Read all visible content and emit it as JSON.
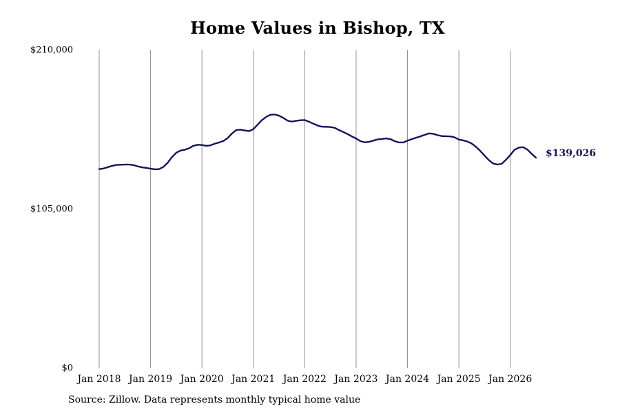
{
  "chart_data": {
    "type": "line",
    "title": "Home Values in Bishop, TX",
    "xlabel": "",
    "ylabel": "",
    "ylim": [
      0,
      210000
    ],
    "xlim": [
      "2018-01",
      "2026-07"
    ],
    "grid": "vertical",
    "y_ticks": [
      {
        "value": 0,
        "label": "$0"
      },
      {
        "value": 105000,
        "label": "$105,000"
      },
      {
        "value": 210000,
        "label": "$210,000"
      }
    ],
    "x_ticks": [
      {
        "value": "2018-01",
        "label": "Jan 2018"
      },
      {
        "value": "2019-01",
        "label": "Jan 2019"
      },
      {
        "value": "2020-01",
        "label": "Jan 2020"
      },
      {
        "value": "2021-01",
        "label": "Jan 2021"
      },
      {
        "value": "2022-01",
        "label": "Jan 2022"
      },
      {
        "value": "2023-01",
        "label": "Jan 2023"
      },
      {
        "value": "2024-01",
        "label": "Jan 2024"
      },
      {
        "value": "2025-01",
        "label": "Jan 2025"
      },
      {
        "value": "2026-01",
        "label": "Jan 2026"
      }
    ],
    "series": [
      {
        "color": "#14145a",
        "end_label": "$139,026",
        "points": [
          [
            "2018-01",
            131500
          ],
          [
            "2018-02",
            131900
          ],
          [
            "2018-03",
            132800
          ],
          [
            "2018-04",
            133600
          ],
          [
            "2018-05",
            134300
          ],
          [
            "2018-06",
            134400
          ],
          [
            "2018-07",
            134500
          ],
          [
            "2018-08",
            134500
          ],
          [
            "2018-09",
            134200
          ],
          [
            "2018-10",
            133300
          ],
          [
            "2018-11",
            132700
          ],
          [
            "2018-12",
            132300
          ],
          [
            "2019-01",
            131800
          ],
          [
            "2019-02",
            131400
          ],
          [
            "2019-03",
            131500
          ],
          [
            "2019-04",
            133000
          ],
          [
            "2019-05",
            135700
          ],
          [
            "2019-06",
            139500
          ],
          [
            "2019-07",
            142300
          ],
          [
            "2019-08",
            143800
          ],
          [
            "2019-09",
            144300
          ],
          [
            "2019-10",
            145300
          ],
          [
            "2019-11",
            146900
          ],
          [
            "2019-12",
            147600
          ],
          [
            "2020-01",
            147400
          ],
          [
            "2020-02",
            146900
          ],
          [
            "2020-03",
            147200
          ],
          [
            "2020-04",
            148300
          ],
          [
            "2020-05",
            149100
          ],
          [
            "2020-06",
            150100
          ],
          [
            "2020-07",
            152000
          ],
          [
            "2020-08",
            155000
          ],
          [
            "2020-09",
            157300
          ],
          [
            "2020-10",
            157600
          ],
          [
            "2020-11",
            157000
          ],
          [
            "2020-12",
            156600
          ],
          [
            "2021-01",
            157900
          ],
          [
            "2021-02",
            160900
          ],
          [
            "2021-03",
            163900
          ],
          [
            "2021-04",
            166000
          ],
          [
            "2021-05",
            167400
          ],
          [
            "2021-06",
            167600
          ],
          [
            "2021-07",
            166800
          ],
          [
            "2021-08",
            165300
          ],
          [
            "2021-09",
            163500
          ],
          [
            "2021-10",
            162900
          ],
          [
            "2021-11",
            163400
          ],
          [
            "2021-12",
            163800
          ],
          [
            "2022-01",
            163900
          ],
          [
            "2022-02",
            162800
          ],
          [
            "2022-03",
            161500
          ],
          [
            "2022-04",
            160300
          ],
          [
            "2022-05",
            159500
          ],
          [
            "2022-06",
            159400
          ],
          [
            "2022-07",
            159300
          ],
          [
            "2022-08",
            158800
          ],
          [
            "2022-09",
            157300
          ],
          [
            "2022-10",
            156000
          ],
          [
            "2022-11",
            154700
          ],
          [
            "2022-12",
            153100
          ],
          [
            "2023-01",
            151700
          ],
          [
            "2023-02",
            150000
          ],
          [
            "2023-03",
            149200
          ],
          [
            "2023-04",
            149500
          ],
          [
            "2023-05",
            150300
          ],
          [
            "2023-06",
            151100
          ],
          [
            "2023-07",
            151400
          ],
          [
            "2023-08",
            151800
          ],
          [
            "2023-09",
            151300
          ],
          [
            "2023-10",
            150000
          ],
          [
            "2023-11",
            149100
          ],
          [
            "2023-12",
            149100
          ],
          [
            "2024-01",
            150300
          ],
          [
            "2024-02",
            151300
          ],
          [
            "2024-03",
            152200
          ],
          [
            "2024-04",
            153100
          ],
          [
            "2024-05",
            154100
          ],
          [
            "2024-06",
            155100
          ],
          [
            "2024-07",
            154800
          ],
          [
            "2024-08",
            154000
          ],
          [
            "2024-09",
            153300
          ],
          [
            "2024-10",
            153200
          ],
          [
            "2024-11",
            153100
          ],
          [
            "2024-12",
            152500
          ],
          [
            "2025-01",
            151000
          ],
          [
            "2025-02",
            150500
          ],
          [
            "2025-03",
            149700
          ],
          [
            "2025-04",
            148400
          ],
          [
            "2025-05",
            146200
          ],
          [
            "2025-06",
            143500
          ],
          [
            "2025-07",
            140400
          ],
          [
            "2025-08",
            137400
          ],
          [
            "2025-09",
            135200
          ],
          [
            "2025-10",
            134500
          ],
          [
            "2025-11",
            135000
          ],
          [
            "2025-12",
            137700
          ],
          [
            "2026-01",
            140800
          ],
          [
            "2026-02",
            144300
          ],
          [
            "2026-03",
            145700
          ],
          [
            "2026-04",
            146000
          ],
          [
            "2026-05",
            144400
          ],
          [
            "2026-06",
            141600
          ],
          [
            "2026-07",
            139026
          ]
        ]
      }
    ]
  },
  "source_note": "Source: Zillow. Data represents monthly typical home value"
}
